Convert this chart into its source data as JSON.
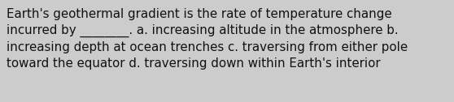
{
  "text": "Earth's geothermal gradient is the rate of temperature change\nincurred by ________. a. increasing altitude in the atmosphere b.\nincreasing depth at ocean trenches c. traversing from either pole\ntoward the equator d. traversing down within Earth's interior",
  "background_color": "#cccccc",
  "text_color": "#111111",
  "font_size": 10.8,
  "fig_width": 5.58,
  "fig_height": 1.26,
  "dpi": 100
}
